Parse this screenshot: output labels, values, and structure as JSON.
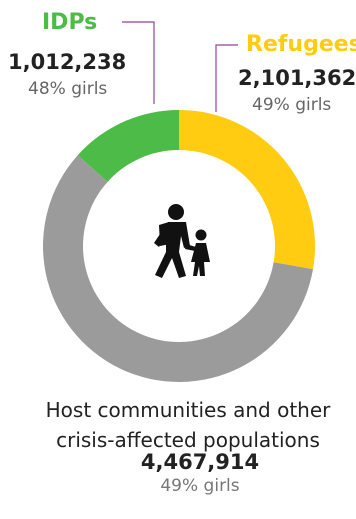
{
  "chart_data": {
    "type": "pie",
    "variant": "donut",
    "categories": [
      "Refugees",
      "Host communities and other crisis-affected populations",
      "IDPs"
    ],
    "values": [
      2101362,
      4467914,
      1012238
    ],
    "colors": [
      "#FFCC12",
      "#9B9B9B",
      "#4CBB47"
    ],
    "percent_girls": [
      "49% girls",
      "49% girls",
      "48% girls"
    ]
  },
  "labels": {
    "idps": {
      "name": "IDPs",
      "value": "1,012,238",
      "pct": "48% girls",
      "color": "#4CBB47"
    },
    "refugees": {
      "name": "Refugees",
      "value": "2,101,362",
      "pct": "49% girls",
      "color": "#FFCC12"
    },
    "host": {
      "name": "Host communities and other crisis-affected populations",
      "value": "4,467,914",
      "pct": "49% girls"
    }
  },
  "icon": "walking-adult-and-child-icon",
  "leader_line_color": "#9B3F9B"
}
